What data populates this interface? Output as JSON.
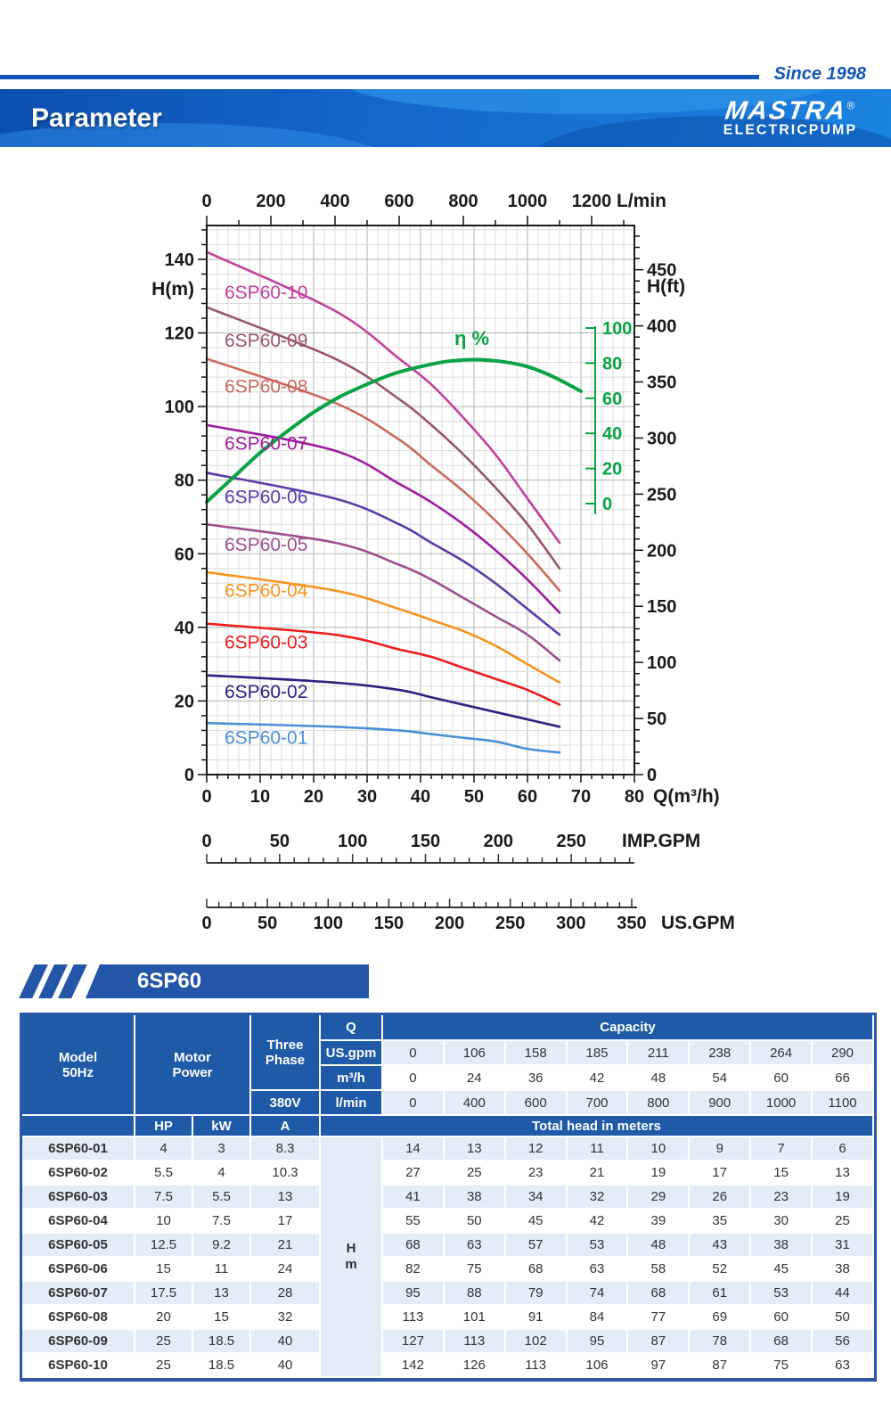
{
  "header": {
    "since": "Since 1998",
    "title": "Parameter",
    "brand": "MASTRA",
    "registered": "®",
    "brand_sub": "ELECTRICPUMP"
  },
  "badge": {
    "label": "6SP60"
  },
  "chart_data": {
    "type": "line",
    "x_flow_m3h": [
      0,
      24,
      36,
      42,
      48,
      54,
      60,
      66
    ],
    "series": [
      {
        "name": "6SP60-10",
        "color": "#c2429c",
        "values": [
          142,
          126,
          113,
          106,
          97,
          87,
          75,
          63
        ],
        "label_h": 131
      },
      {
        "name": "6SP60-09",
        "color": "#9a5570",
        "values": [
          127,
          113,
          102,
          95,
          87,
          78,
          68,
          56
        ],
        "label_h": 118
      },
      {
        "name": "6SP60-08",
        "color": "#c96a5e",
        "values": [
          113,
          101,
          91,
          84,
          77,
          69,
          60,
          50
        ],
        "label_h": 105.5
      },
      {
        "name": "6SP60-07",
        "color": "#a01da0",
        "values": [
          95,
          88,
          79,
          74,
          68,
          61,
          53,
          44
        ],
        "label_h": 90
      },
      {
        "name": "6SP60-06",
        "color": "#5b3aa8",
        "values": [
          82,
          75,
          68,
          63,
          58,
          52,
          45,
          38
        ],
        "label_h": 75.5
      },
      {
        "name": "6SP60-05",
        "color": "#9c4f8c",
        "values": [
          68,
          63,
          57,
          53,
          48,
          43,
          38,
          31
        ],
        "label_h": 62.5
      },
      {
        "name": "6SP60-04",
        "color": "#f7941d",
        "values": [
          55,
          50,
          45,
          42,
          39,
          35,
          30,
          25
        ],
        "label_h": 50
      },
      {
        "name": "6SP60-03",
        "color": "#ee1c1c",
        "values": [
          41,
          38,
          34,
          32,
          29,
          26,
          23,
          19
        ],
        "label_h": 36
      },
      {
        "name": "6SP60-02",
        "color": "#2b2382",
        "values": [
          27,
          25,
          23,
          21,
          19,
          17,
          15,
          13
        ],
        "label_h": 22.5
      },
      {
        "name": "6SP60-01",
        "color": "#4a90d8",
        "values": [
          14,
          13,
          12,
          11,
          10,
          9,
          7,
          6
        ],
        "label_h": 10
      }
    ],
    "efficiency": {
      "label": "η %",
      "color": "#0aa344",
      "q": [
        0,
        5,
        10,
        15,
        20,
        25,
        30,
        35,
        40,
        45,
        50,
        55,
        60,
        65,
        70
      ],
      "eta": [
        1,
        15,
        29,
        41,
        52,
        61,
        68,
        74,
        78,
        81,
        82,
        81,
        78,
        72,
        64
      ],
      "axis_ticks": [
        0,
        20,
        40,
        60,
        80,
        100
      ]
    },
    "axes": {
      "left": {
        "label": "H(m)",
        "ticks": [
          0,
          20,
          40,
          60,
          80,
          100,
          120,
          140
        ]
      },
      "right": {
        "label": "H(ft)",
        "ticks": [
          0,
          50,
          100,
          150,
          200,
          250,
          300,
          350,
          400,
          450
        ]
      },
      "top": {
        "label": "L/min",
        "ticks": [
          0,
          200,
          400,
          600,
          800,
          1000,
          1200
        ]
      },
      "bottom": {
        "label": "Q(m³/h)",
        "ticks": [
          0,
          10,
          20,
          30,
          40,
          50,
          60,
          70,
          80
        ]
      },
      "imp_gpm": {
        "label": "IMP.GPM",
        "ticks": [
          0,
          50,
          100,
          150,
          200,
          250
        ]
      },
      "us_gpm": {
        "label": "US.GPM",
        "ticks": [
          0,
          50,
          100,
          150,
          200,
          250,
          300,
          350
        ]
      }
    }
  },
  "table": {
    "model_header_line1": "Model",
    "model_header_line2": "50Hz",
    "motor_header_line1": "Motor",
    "motor_header_line2": "Power",
    "three_phase_line1": "Three",
    "three_phase_line2": "Phase",
    "voltage": "380V",
    "q_label": "Q",
    "capacity_label": "Capacity",
    "unit_rows": [
      {
        "label": "US.gpm",
        "values": [
          0,
          106,
          158,
          185,
          211,
          238,
          264,
          290
        ]
      },
      {
        "label": "m³/h",
        "values": [
          0,
          24,
          36,
          42,
          48,
          54,
          60,
          66
        ]
      },
      {
        "label": "l/min",
        "values": [
          0,
          400,
          600,
          700,
          800,
          900,
          1000,
          1100
        ]
      }
    ],
    "sub_headers": {
      "hp": "HP",
      "kw": "kW",
      "amp": "A",
      "total_head": "Total head in meters"
    },
    "hm_label_1": "H",
    "hm_label_2": "m",
    "rows": [
      {
        "model": "6SP60-01",
        "hp": "4",
        "kw": "3",
        "a": "8.3",
        "heads": [
          14,
          13,
          12,
          11,
          10,
          9,
          7,
          6
        ]
      },
      {
        "model": "6SP60-02",
        "hp": "5.5",
        "kw": "4",
        "a": "10.3",
        "heads": [
          27,
          25,
          23,
          21,
          19,
          17,
          15,
          13
        ]
      },
      {
        "model": "6SP60-03",
        "hp": "7.5",
        "kw": "5.5",
        "a": "13",
        "heads": [
          41,
          38,
          34,
          32,
          29,
          26,
          23,
          19
        ]
      },
      {
        "model": "6SP60-04",
        "hp": "10",
        "kw": "7.5",
        "a": "17",
        "heads": [
          55,
          50,
          45,
          42,
          39,
          35,
          30,
          25
        ]
      },
      {
        "model": "6SP60-05",
        "hp": "12.5",
        "kw": "9.2",
        "a": "21",
        "heads": [
          68,
          63,
          57,
          53,
          48,
          43,
          38,
          31
        ]
      },
      {
        "model": "6SP60-06",
        "hp": "15",
        "kw": "11",
        "a": "24",
        "heads": [
          82,
          75,
          68,
          63,
          58,
          52,
          45,
          38
        ]
      },
      {
        "model": "6SP60-07",
        "hp": "17.5",
        "kw": "13",
        "a": "28",
        "heads": [
          95,
          88,
          79,
          74,
          68,
          61,
          53,
          44
        ]
      },
      {
        "model": "6SP60-08",
        "hp": "20",
        "kw": "15",
        "a": "32",
        "heads": [
          113,
          101,
          91,
          84,
          77,
          69,
          60,
          50
        ]
      },
      {
        "model": "6SP60-09",
        "hp": "25",
        "kw": "18.5",
        "a": "40",
        "heads": [
          127,
          113,
          102,
          95,
          87,
          78,
          68,
          56
        ]
      },
      {
        "model": "6SP60-10",
        "hp": "25",
        "kw": "18.5",
        "a": "40",
        "heads": [
          142,
          126,
          113,
          106,
          97,
          87,
          75,
          63
        ]
      }
    ]
  }
}
